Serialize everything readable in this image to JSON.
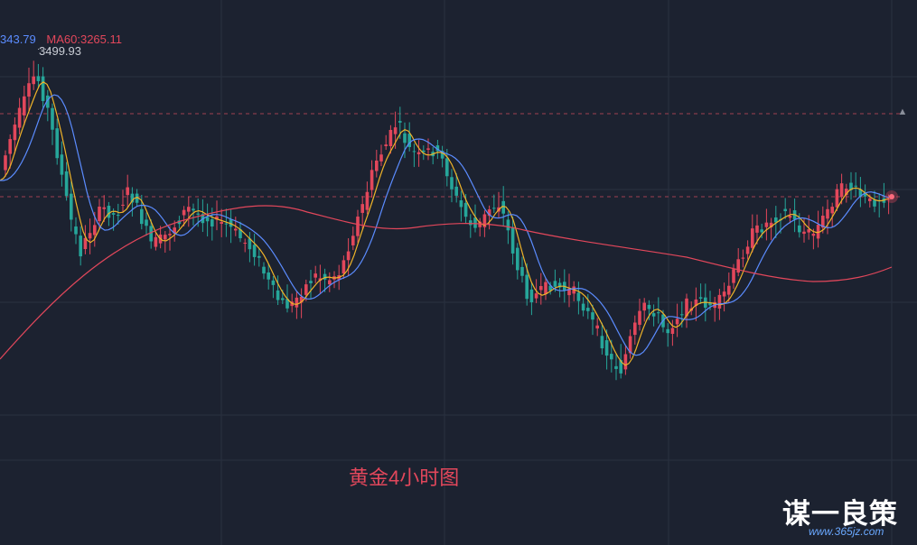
{
  "legend": {
    "ma30_text": "343.79",
    "ma60_text": "MA60:3265.11",
    "ma30_color": "#5b8cff",
    "ma60_color": "#e2475b"
  },
  "high_label": "3499.93",
  "caption": "黄金4小时图",
  "brand": {
    "name": "谋一良策",
    "url": "www.365jz.com"
  },
  "colors": {
    "background": "#1c2230",
    "grid": "#2a3140",
    "up": "#e2475b",
    "down": "#26a69a",
    "ma_fast": "#f0b429",
    "ma_mid": "#5b8cff",
    "ma_slow": "#e2475b",
    "dashed_level": "#a04050"
  },
  "chart_data": {
    "type": "candlestick",
    "title": "黄金4小时图",
    "series": [
      {
        "name": "MA60",
        "value": 3265.11
      }
    ],
    "high": 3499.93,
    "grid": true
  }
}
